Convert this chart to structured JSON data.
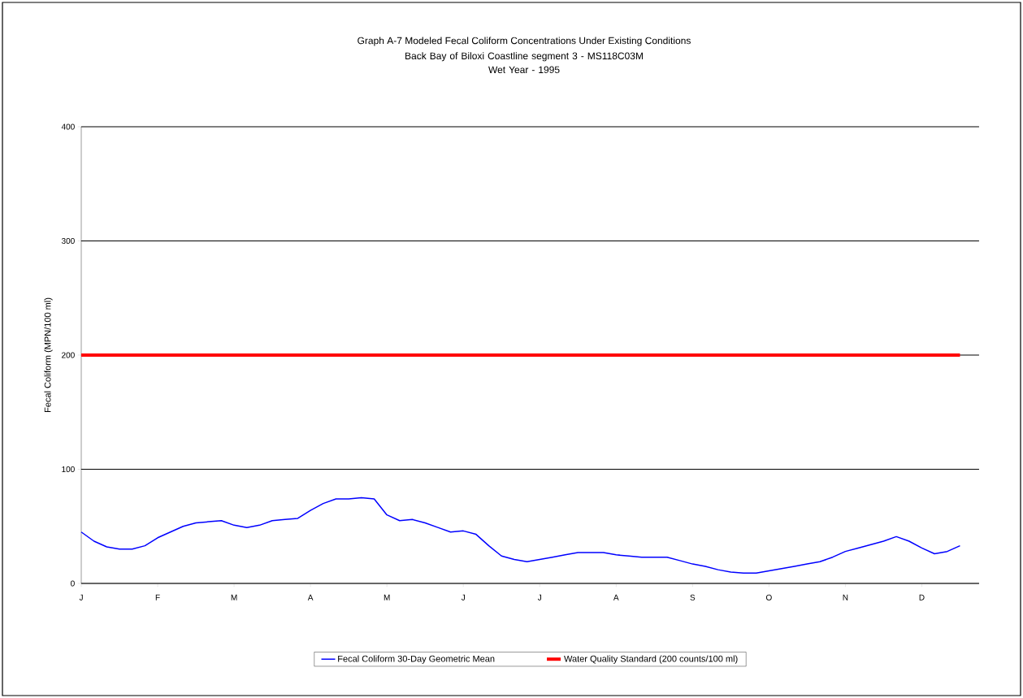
{
  "chart_data": {
    "type": "line",
    "title": "Graph A-7   Modeled Fecal Coliform Concentrations Under Existing Conditions",
    "subtitle": "Back Bay of Biloxi Coastline segment 3 - MS118C03M\nWet Year - 1995",
    "ylabel": "Fecal Coliform (MPN/100 ml)",
    "categories": [
      "J",
      null,
      null,
      null,
      null,
      null,
      "F",
      null,
      null,
      null,
      null,
      null,
      "M",
      null,
      null,
      null,
      null,
      null,
      "A",
      null,
      null,
      null,
      null,
      null,
      "M",
      null,
      null,
      null,
      null,
      null,
      "J",
      null,
      null,
      null,
      null,
      null,
      "J",
      null,
      null,
      null,
      null,
      null,
      "A",
      null,
      null,
      null,
      null,
      null,
      "S",
      null,
      null,
      null,
      null,
      null,
      "O",
      null,
      null,
      null,
      null,
      null,
      "N",
      null,
      null,
      null,
      null,
      null,
      "D",
      null,
      null,
      null
    ],
    "series": [
      {
        "name": "Fecal Coliform 30-Day Geometric Mean",
        "color": "#0000ff",
        "values": [
          45,
          37,
          32,
          30,
          30,
          33,
          40,
          45,
          50,
          53,
          54,
          55,
          51,
          49,
          51,
          55,
          56,
          57,
          64,
          70,
          74,
          74,
          75,
          74,
          60,
          55,
          56,
          53,
          49,
          45,
          46,
          43,
          33,
          24,
          21,
          19,
          21,
          23,
          25,
          27,
          27,
          27,
          25,
          24,
          23,
          23,
          23,
          20,
          17,
          15,
          12,
          10,
          9,
          9,
          11,
          13,
          15,
          17,
          19,
          23,
          28,
          31,
          34,
          37,
          41,
          37,
          31,
          26,
          28,
          33
        ]
      }
    ],
    "ylim": [
      0,
      400
    ],
    "yticks": [
      0,
      100,
      200,
      300,
      400
    ],
    "grid": "y",
    "legend": "bottom",
    "marker": "none",
    "line_style": "solid",
    "ref_lines": [
      {
        "axis": "y",
        "value": 200,
        "label": "Water Quality Standard (200 counts/100 ml)",
        "color": "#ff0000"
      }
    ]
  }
}
